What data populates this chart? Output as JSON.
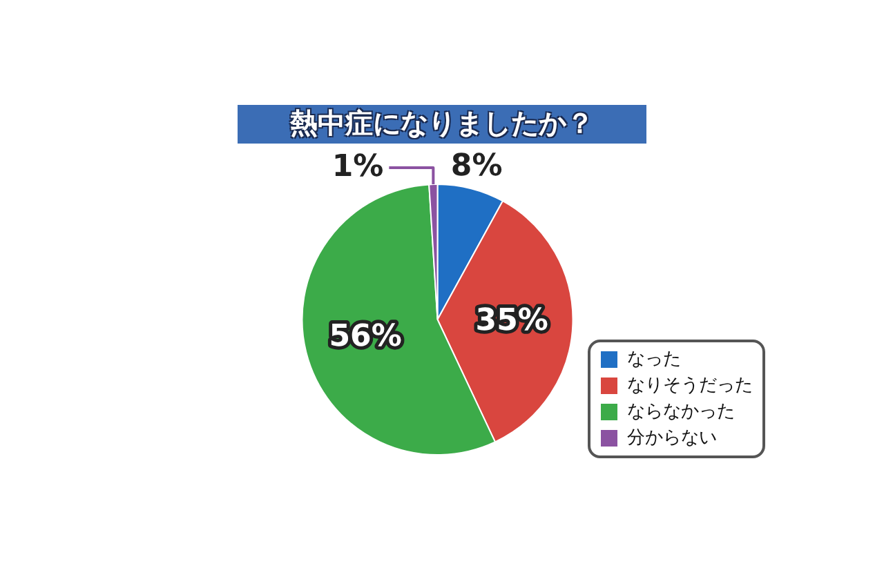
{
  "chart_data": {
    "type": "pie",
    "title": "熱中症になりましたか？",
    "categories": [
      "なった",
      "なりそうだった",
      "ならなかった",
      "分からない"
    ],
    "values": [
      8,
      35,
      56,
      1
    ],
    "colors": [
      "#1f6fc4",
      "#d9463f",
      "#3cab49",
      "#8b52a1"
    ],
    "value_labels": [
      "8%",
      "35%",
      "56%",
      "1%"
    ],
    "legend": "bottom right"
  }
}
